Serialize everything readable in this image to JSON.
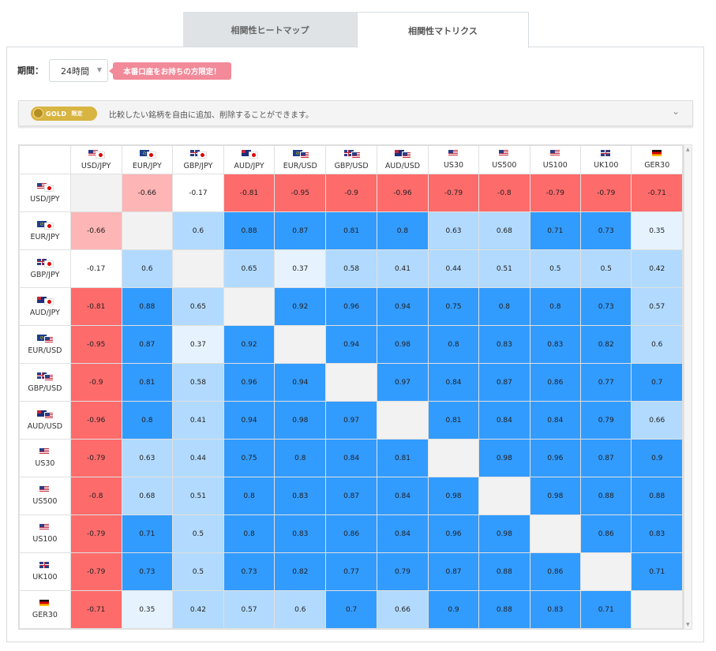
{
  "tabs": [
    {
      "label": "相関性ヒートマップ",
      "active": false
    },
    {
      "label": "相関性マトリクス",
      "active": true
    }
  ],
  "period": {
    "label": "期間：",
    "value": "24時間"
  },
  "promo_text": "本番口座をお持ちの方限定！",
  "gold": {
    "badge": "GOLD",
    "tag": "限定",
    "text": "比較したい銘柄を自由に追加、削除することができます。"
  },
  "colors": {
    "negative_strong": "#fe6b6b",
    "negative_light": "#feb5b5",
    "positive_strong": "#329bfe",
    "positive_mid": "#b2dafe",
    "positive_light": "#e6f3fe",
    "neutral": "#ffffff",
    "diagonal": "#f2f2f2"
  },
  "symbols": [
    {
      "label": "USD/JPY",
      "icon": "us-jp-flag-icon",
      "flags": [
        "us",
        "jp"
      ]
    },
    {
      "label": "EUR/JPY",
      "icon": "eu-jp-flag-icon",
      "flags": [
        "eu",
        "jp"
      ]
    },
    {
      "label": "GBP/JPY",
      "icon": "gb-jp-flag-icon",
      "flags": [
        "gb",
        "jp"
      ]
    },
    {
      "label": "AUD/JPY",
      "icon": "au-jp-flag-icon",
      "flags": [
        "au",
        "jp"
      ]
    },
    {
      "label": "EUR/USD",
      "icon": "eu-us-flag-icon",
      "flags": [
        "eu",
        "us"
      ]
    },
    {
      "label": "GBP/USD",
      "icon": "gb-us-flag-icon",
      "flags": [
        "gb",
        "us"
      ]
    },
    {
      "label": "AUD/USD",
      "icon": "au-us-flag-icon",
      "flags": [
        "au",
        "us"
      ]
    },
    {
      "label": "US30",
      "icon": "us-flag-icon",
      "flags": [
        "us"
      ]
    },
    {
      "label": "US500",
      "icon": "us-flag-icon",
      "flags": [
        "us"
      ]
    },
    {
      "label": "US100",
      "icon": "us-flag-icon",
      "flags": [
        "us"
      ]
    },
    {
      "label": "UK100",
      "icon": "gb-flag-icon",
      "flags": [
        "gb"
      ]
    },
    {
      "label": "GER30",
      "icon": "de-flag-icon",
      "flags": [
        "de"
      ]
    }
  ],
  "matrix": [
    [
      null,
      "-0.66",
      "-0.17",
      "-0.81",
      "-0.95",
      "-0.9",
      "-0.96",
      "-0.79",
      "-0.8",
      "-0.79",
      "-0.79",
      "-0.71"
    ],
    [
      "-0.66",
      null,
      "0.6",
      "0.88",
      "0.87",
      "0.81",
      "0.8",
      "0.63",
      "0.68",
      "0.71",
      "0.73",
      "0.35"
    ],
    [
      "-0.17",
      "0.6",
      null,
      "0.65",
      "0.37",
      "0.58",
      "0.41",
      "0.44",
      "0.51",
      "0.5",
      "0.5",
      "0.42"
    ],
    [
      "-0.81",
      "0.88",
      "0.65",
      null,
      "0.92",
      "0.96",
      "0.94",
      "0.75",
      "0.8",
      "0.8",
      "0.73",
      "0.57"
    ],
    [
      "-0.95",
      "0.87",
      "0.37",
      "0.92",
      null,
      "0.94",
      "0.98",
      "0.8",
      "0.83",
      "0.83",
      "0.82",
      "0.6"
    ],
    [
      "-0.9",
      "0.81",
      "0.58",
      "0.96",
      "0.94",
      null,
      "0.97",
      "0.84",
      "0.87",
      "0.86",
      "0.77",
      "0.7"
    ],
    [
      "-0.96",
      "0.8",
      "0.41",
      "0.94",
      "0.98",
      "0.97",
      null,
      "0.81",
      "0.84",
      "0.84",
      "0.79",
      "0.66"
    ],
    [
      "-0.79",
      "0.63",
      "0.44",
      "0.75",
      "0.8",
      "0.84",
      "0.81",
      null,
      "0.98",
      "0.96",
      "0.87",
      "0.9"
    ],
    [
      "-0.8",
      "0.68",
      "0.51",
      "0.8",
      "0.83",
      "0.87",
      "0.84",
      "0.98",
      null,
      "0.98",
      "0.88",
      "0.88"
    ],
    [
      "-0.79",
      "0.71",
      "0.5",
      "0.8",
      "0.83",
      "0.86",
      "0.84",
      "0.96",
      "0.98",
      null,
      "0.86",
      "0.83"
    ],
    [
      "-0.79",
      "0.73",
      "0.5",
      "0.73",
      "0.82",
      "0.77",
      "0.79",
      "0.87",
      "0.88",
      "0.86",
      null,
      "0.71"
    ],
    [
      "-0.71",
      "0.35",
      "0.42",
      "0.57",
      "0.6",
      "0.7",
      "0.66",
      "0.9",
      "0.88",
      "0.83",
      "0.71",
      null
    ]
  ]
}
